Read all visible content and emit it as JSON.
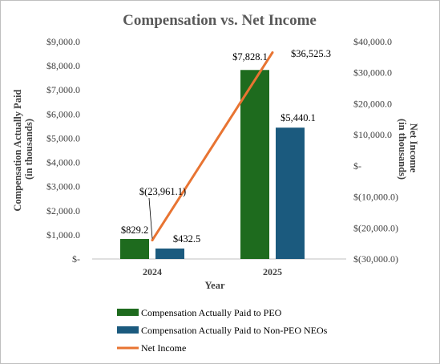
{
  "chart_data": {
    "type": "bar",
    "title": "Compensation vs. Net Income",
    "xlabel": "Year",
    "ylabel_left": [
      "Compensation Actually Paid",
      "(in thousands)"
    ],
    "ylabel_right": [
      "Net Income",
      "(in thousands)"
    ],
    "categories": [
      "2024",
      "2025"
    ],
    "ylim_left": [
      0,
      9000
    ],
    "ylim_right": [
      -30000,
      40000
    ],
    "yticks_left": [
      {
        "value": 0,
        "label": "$-"
      },
      {
        "value": 1000,
        "label": "$1,000.0"
      },
      {
        "value": 2000,
        "label": "$2,000.0"
      },
      {
        "value": 3000,
        "label": "$3,000.0"
      },
      {
        "value": 4000,
        "label": "$4,000.0"
      },
      {
        "value": 5000,
        "label": "$5,000.0"
      },
      {
        "value": 6000,
        "label": "$6,000.0"
      },
      {
        "value": 7000,
        "label": "$7,000.0"
      },
      {
        "value": 8000,
        "label": "$8,000.0"
      },
      {
        "value": 9000,
        "label": "$9,000.0"
      }
    ],
    "yticks_right": [
      {
        "value": -30000,
        "label": "$(30,000.0)"
      },
      {
        "value": -20000,
        "label": "$(20,000.0)"
      },
      {
        "value": -10000,
        "label": "$(10,000.0)"
      },
      {
        "value": 0,
        "label": "$-"
      },
      {
        "value": 10000,
        "label": "$10,000.0"
      },
      {
        "value": 20000,
        "label": "$20,000.0"
      },
      {
        "value": 30000,
        "label": "$30,000.0"
      },
      {
        "value": 40000,
        "label": "$40,000.0"
      }
    ],
    "grid": false,
    "legend_position": "bottom",
    "series": [
      {
        "name": "Compensation Actually Paid to PEO",
        "type": "bar",
        "axis": "left",
        "color": "#1e6b1e",
        "values": [
          829.2,
          7828.1
        ],
        "labels": [
          "$829.2",
          "$7,828.1"
        ]
      },
      {
        "name": "Compensation Actually Paid to Non-PEO NEOs",
        "type": "bar",
        "axis": "left",
        "color": "#1b5a7e",
        "values": [
          432.5,
          5440.1
        ],
        "labels": [
          "$432.5",
          "$5,440.1"
        ]
      },
      {
        "name": "Net Income",
        "type": "line",
        "axis": "right",
        "color": "#e87432",
        "values": [
          -23961.1,
          36525.3
        ],
        "labels": [
          "$(23,961.1)",
          "$36,525.3"
        ]
      }
    ]
  }
}
